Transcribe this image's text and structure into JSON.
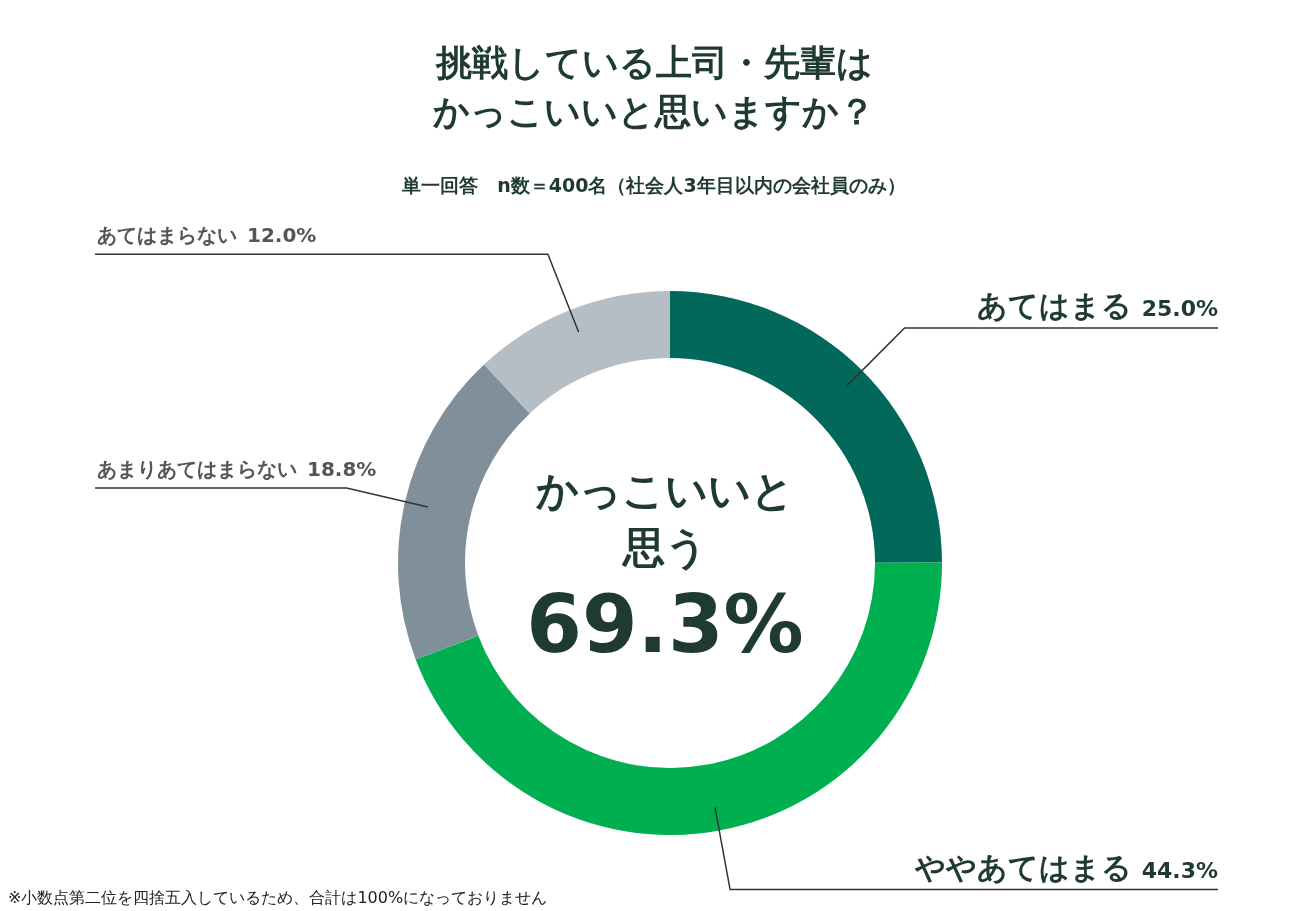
{
  "chart_data": {
    "type": "donut",
    "title": "挑戦している上司・先輩はかっこいいと思いますか？",
    "subtitle": "単一回答　n数＝400名（社会人3年目以内の会社員のみ）",
    "categories": [
      "あてはまる",
      "ややあてはまる",
      "あまりあてはまらない",
      "あてはまらない"
    ],
    "values": [
      25.0,
      44.3,
      18.8,
      12.0
    ],
    "value_labels": [
      "25.0%",
      "44.3%",
      "18.8%",
      "12.0%"
    ],
    "colors": [
      "#02695a",
      "#00b050",
      "#7f909b",
      "#b5bec4"
    ],
    "annotations": [
      "かっこいいと思う",
      "69.3%",
      "※小数点第二位を四捨五入しているため、合計は100%になっておりません"
    ],
    "legend": false
  }
}
